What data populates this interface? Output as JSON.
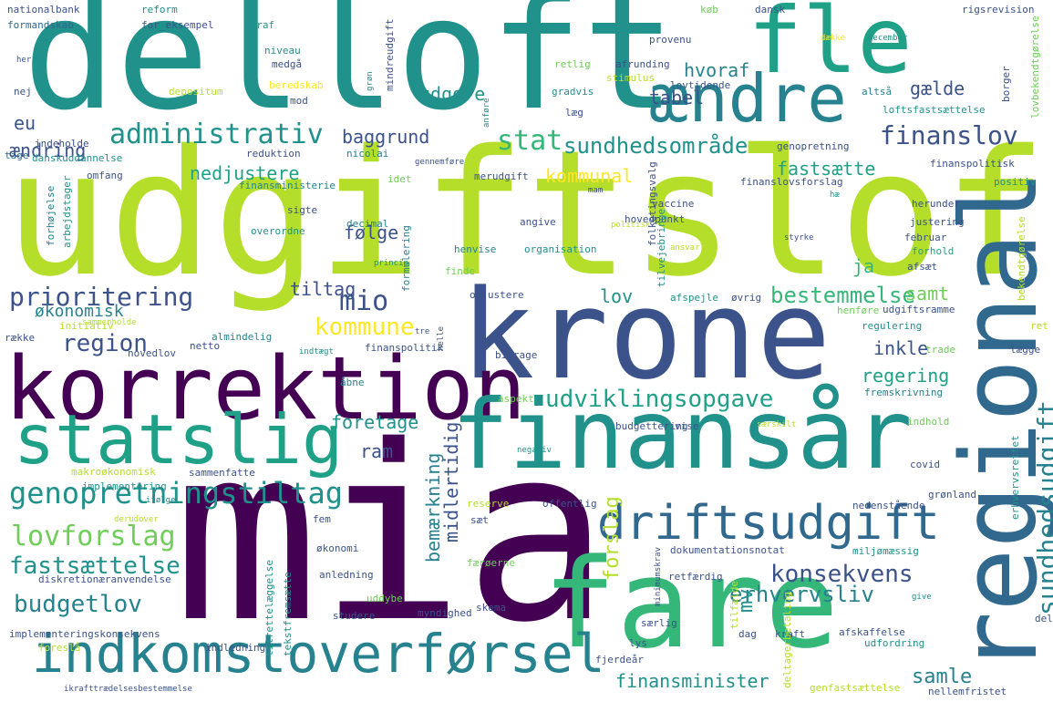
{
  "palette": {
    "dark_purple": "#440154",
    "indigo": "#3b528b",
    "slate_blue": "#31688e",
    "teal_blue": "#26828e",
    "teal": "#21918c",
    "sea_green": "#1fa187",
    "green": "#35b779",
    "light_green": "#6ece58",
    "lime": "#b5de2b",
    "yellow": "#fde725"
  },
  "words": [
    "delloft",
    "fle",
    "ændre",
    "udgiftsloft",
    "krone",
    "korrektion",
    "statslig",
    "finansår",
    "mia",
    "fare",
    "regional",
    "driftsudgift",
    "indkomstoverførsel",
    "genopretningstiltag",
    "administrativ",
    "finanslov",
    "stat",
    "sundhedsområde",
    "prioritering",
    "region",
    "lovforslag",
    "budgetlov",
    "fastsættelse",
    "udviklingsopgave",
    "konsekvens",
    "sundhedsudgift",
    "bestemmelse",
    "kommune",
    "mio",
    "erhvervsliv",
    "forslag",
    "bemærkning",
    "midlertidig",
    "finansminister",
    "samle",
    "udgøre",
    "tabel",
    "hvoraf",
    "gælde",
    "baggrund",
    "eu",
    "ændring",
    "nedjustere",
    "kommunal",
    "fastsætte",
    "følge",
    "ja",
    "lov",
    "tiltag",
    "økonomisk",
    "samt",
    "inkle",
    "regering",
    "foretage",
    "ram",
    "mv",
    "nationalbank",
    "formandskab",
    "reform",
    "for_eksempel",
    "heraf",
    "køb",
    "dansk",
    "rigsrevision",
    "provenu",
    "december",
    "dække",
    "niveau",
    "medgå",
    "mindreudgift",
    "retlig",
    "afrunding",
    "stimulus",
    "lovtidende",
    "gradvis",
    "depositum",
    "beredskab",
    "nej",
    "grøn",
    "mod",
    "altså",
    "borger",
    "loftsfastsættelse",
    "indeholde",
    "tage",
    "danskuddannelse",
    "reduktion",
    "nicolai",
    "genopretning",
    "omfang",
    "finansministerie",
    "gennemføre",
    "merudgift",
    "idet",
    "finanspolitisk",
    "positiv",
    "finanslovsforslag",
    "vaccine",
    "herunder",
    "justering",
    "februar",
    "forhold",
    "afsæt",
    "hovedpunkt",
    "politisk",
    "angive",
    "sigte",
    "decimal",
    "henvise",
    "organisation",
    "overordne",
    "finde",
    "formulering",
    "opjustere",
    "afspejle",
    "øvrig",
    "henføre",
    "udgiftsramme",
    "regulering",
    "initiativ",
    "sammenholde",
    "almindelig",
    "netto",
    "novedlov",
    "indtægt",
    "finanspolitik",
    "bidrage",
    "trade",
    "lægge",
    "række",
    "åbne",
    "aspekt",
    "fremskrivning",
    "budgettering",
    "vise",
    "særskilt",
    "indhold",
    "negativ",
    "makroøkonomisk",
    "sammenfatte",
    "covid",
    "implementering",
    "ifølge",
    "reserve",
    "offentlig",
    "nedenstående",
    "grønland",
    "derudover",
    "fem",
    "sæt",
    "økonomi",
    "dokumentationsnotat",
    "miljømæssig",
    "diskretionæranvendelse",
    "anledning",
    "retfærdig",
    "færøerne",
    "uddybe",
    "skema",
    "give",
    "studere",
    "myndighed",
    "dag",
    "kraft",
    "afskaffelse",
    "udfordring",
    "del",
    "særlig",
    "lys",
    "implementeringskonsekvens",
    "foreslå",
    "indledning",
    "tekstfremsætte",
    "fjerdeår",
    "genfastsættelse",
    "nellemfristet",
    "ikrafttrædelsesbestemmelse",
    "tilrettelæggelse",
    "tilfælde",
    "deltagerbetaling",
    "minimumskrav",
    "erhvervsrettet",
    "bekendtgørelse",
    "ret",
    "lovbekendtgørelse",
    "arbejdstager",
    "forhøjelse",
    "anføre",
    "tilvejebringe",
    "folketingsvalg",
    "ansvarlig",
    "styrke",
    "tre",
    "helle",
    "princip",
    "hæ",
    "læg",
    "mam",
    "her"
  ]
}
